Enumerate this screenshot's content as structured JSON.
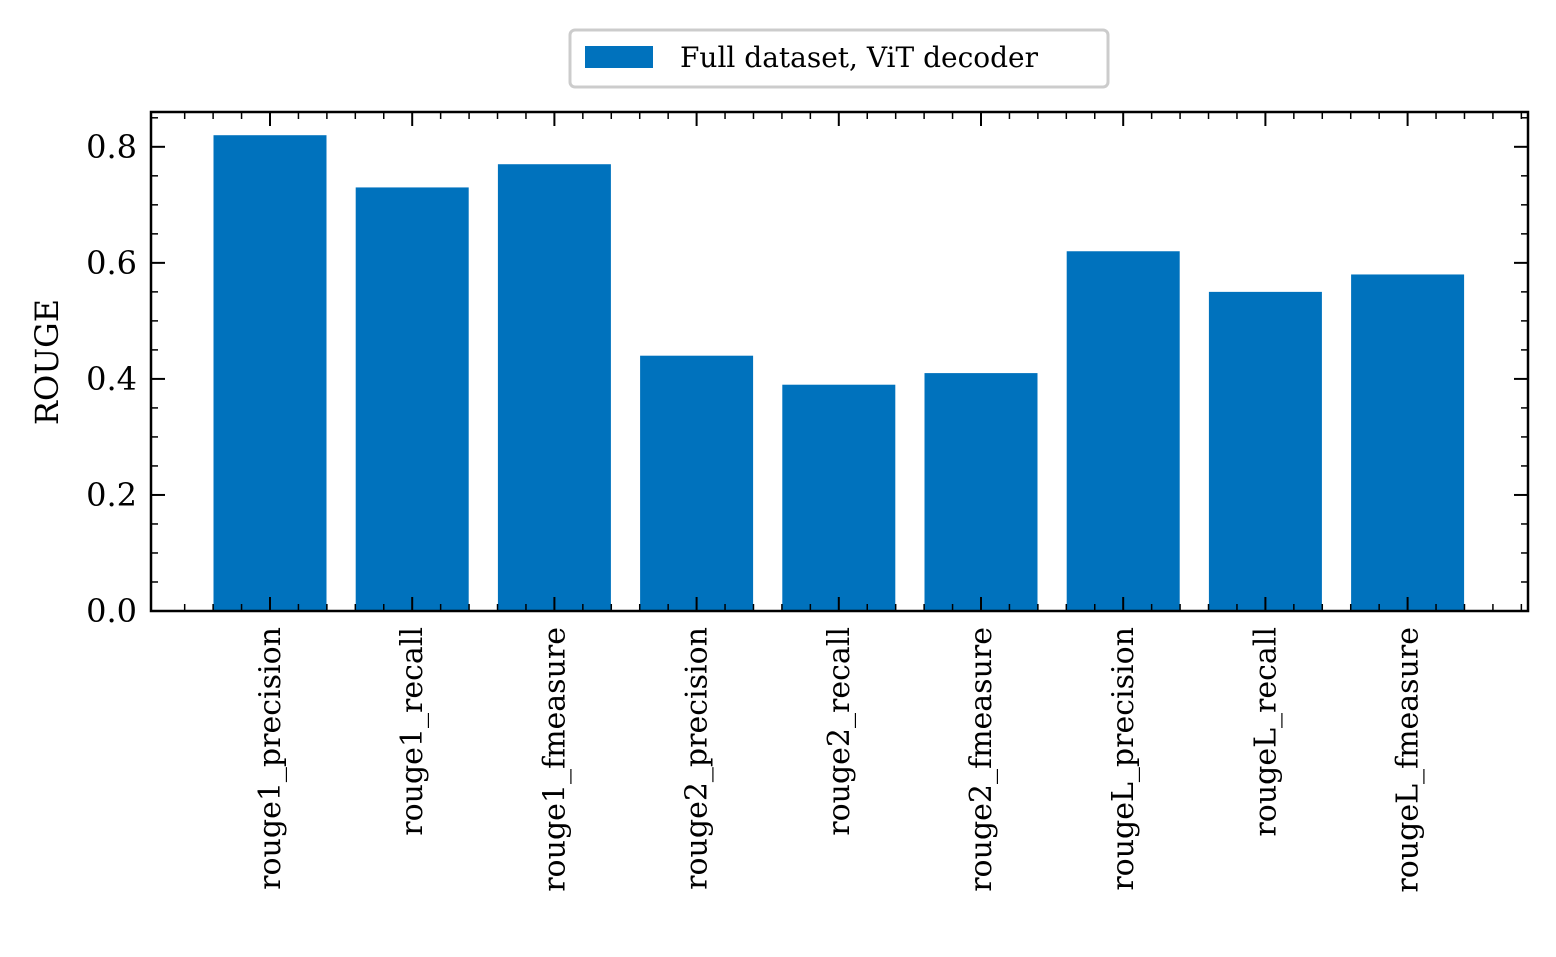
{
  "chart_data": {
    "type": "bar",
    "categories": [
      "rouge1_precision",
      "rouge1_recall",
      "rouge1_fmeasure",
      "rouge2_precision",
      "rouge2_recall",
      "rouge2_fmeasure",
      "rougeL_precision",
      "rougeL_recall",
      "rougeL_fmeasure"
    ],
    "series": [
      {
        "name": "Full dataset, ViT decoder",
        "color": "#0072bd",
        "values": [
          0.82,
          0.73,
          0.77,
          0.44,
          0.39,
          0.41,
          0.62,
          0.55,
          0.58
        ]
      }
    ],
    "xlabel": "",
    "ylabel": "ROUGE",
    "ylim": [
      0,
      0.86
    ],
    "yticks": [
      "0.0",
      "0.2",
      "0.4",
      "0.6",
      "0.8"
    ],
    "legend_position": "top-center",
    "grid": false
  }
}
